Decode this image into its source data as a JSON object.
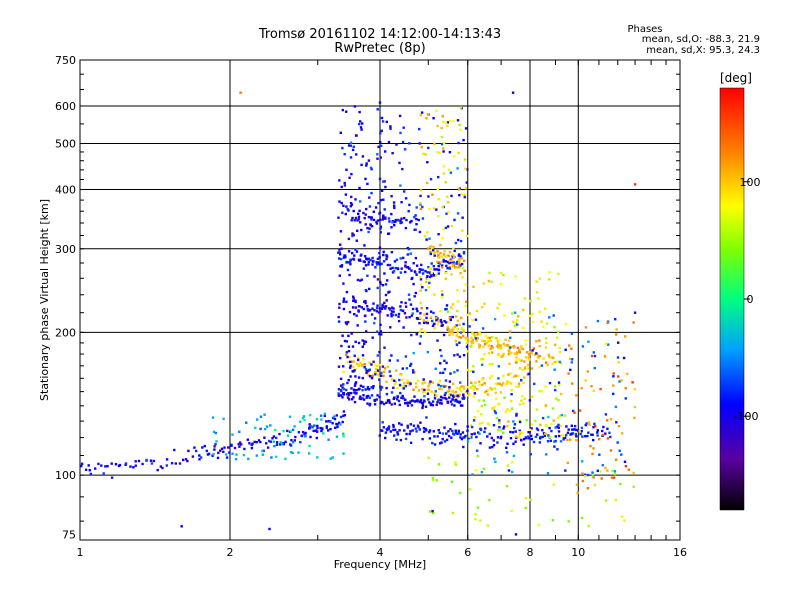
{
  "chart_data": {
    "type": "scatter",
    "title": "Tromsø 20161102 14:12:00-14:13:43",
    "subtitle": "RwPretec (8p)",
    "stats": {
      "header": "Phases",
      "line_o": "mean, sd,O: -88.3, 21.9",
      "line_x": "mean, sd,X:  95.3, 24.3"
    },
    "xlabel": "Frequency [MHz]",
    "ylabel": "Stationary phase Virtual Height [km]",
    "xscale": "log",
    "yscale": "log",
    "xlim": [
      1,
      16
    ],
    "ylim": [
      73,
      750
    ],
    "xticks": [
      1,
      2,
      4,
      6,
      8,
      10,
      16
    ],
    "yticks": [
      75,
      100,
      200,
      300,
      400,
      500,
      600,
      750
    ],
    "grid": true,
    "colorbar": {
      "label": "[deg]",
      "range": [
        -180,
        180
      ],
      "ticks": [
        -100,
        0,
        100
      ]
    },
    "traces": [
      {
        "freq": [
          1.0,
          1.3,
          1.7,
          2.0,
          2.4,
          2.8,
          3.1,
          3.4
        ],
        "height": [
          103,
          105,
          110,
          114,
          117,
          121,
          126,
          133
        ],
        "phase": -95,
        "spread": 0.04
      },
      {
        "freq": [
          3.3,
          3.6,
          4.0,
          4.5,
          5.0,
          5.5,
          5.9
        ],
        "height": [
          150,
          146,
          143,
          142,
          143,
          144,
          145
        ],
        "phase": -100,
        "spread": 0.03
      },
      {
        "freq": [
          3.4,
          3.8,
          4.2,
          4.8,
          5.4,
          6.0,
          7.0,
          8.0
        ],
        "height": [
          175,
          168,
          160,
          155,
          152,
          150,
          155,
          160
        ],
        "phase": 100,
        "spread": 0.05
      },
      {
        "freq": [
          4.0,
          4.4,
          4.9,
          5.5,
          6.0,
          7.0,
          8.0,
          9.0,
          10.0,
          11.5
        ],
        "height": [
          125,
          124,
          123,
          122,
          121,
          120,
          121,
          122,
          123,
          122
        ],
        "phase": -90,
        "spread": 0.05
      },
      {
        "freq": [
          3.3,
          3.6,
          4.0,
          4.5,
          5.0,
          5.5,
          5.9
        ],
        "height": [
          290,
          285,
          280,
          275,
          265,
          280,
          290
        ],
        "phase": -90,
        "spread": 0.04
      },
      {
        "freq": [
          5.0,
          5.5,
          5.9
        ],
        "height": [
          300,
          285,
          275
        ],
        "phase": 110,
        "spread": 0.05
      },
      {
        "freq": [
          3.4,
          3.8,
          4.2,
          4.8
        ],
        "height": [
          360,
          350,
          345,
          340
        ],
        "phase": -95,
        "spread": 0.05
      },
      {
        "freq": [
          3.5,
          3.9,
          4.3,
          5.0,
          5.6
        ],
        "height": [
          230,
          225,
          220,
          215,
          210
        ],
        "phase": -100,
        "spread": 0.05
      },
      {
        "freq": [
          5.5,
          6.0,
          6.5,
          7.0,
          7.5,
          8.0,
          9.0
        ],
        "height": [
          200,
          195,
          190,
          185,
          180,
          178,
          175
        ],
        "phase": 105,
        "spread": 0.05
      }
    ],
    "clusters": [
      {
        "f_range": [
          3.3,
          4.2
        ],
        "h_range": [
          150,
          600
        ],
        "phase": -95,
        "count": 260
      },
      {
        "f_range": [
          4.2,
          6.0
        ],
        "h_range": [
          140,
          600
        ],
        "phase": -85,
        "count": 200
      },
      {
        "f_range": [
          4.8,
          6.0
        ],
        "h_range": [
          200,
          600
        ],
        "phase": 90,
        "count": 120
      },
      {
        "f_range": [
          6.0,
          9.5
        ],
        "h_range": [
          120,
          270
        ],
        "phase": 80,
        "count": 170
      },
      {
        "f_range": [
          6.0,
          12.5
        ],
        "h_range": [
          100,
          220
        ],
        "phase": -70,
        "count": 110
      },
      {
        "f_range": [
          9.5,
          13.0
        ],
        "h_range": [
          90,
          210
        ],
        "phase": 120,
        "count": 70
      },
      {
        "f_range": [
          5.0,
          12.5
        ],
        "h_range": [
          78,
          110
        ],
        "phase": 60,
        "count": 45
      },
      {
        "f_range": [
          1.8,
          3.4
        ],
        "h_range": [
          108,
          135
        ],
        "phase": -30,
        "count": 70
      }
    ],
    "outliers": [
      {
        "f": 2.1,
        "h": 640,
        "phase": 130
      },
      {
        "f": 7.4,
        "h": 640,
        "phase": -100
      },
      {
        "f": 4.0,
        "h": 610,
        "phase": -110
      },
      {
        "f": 13.0,
        "h": 410,
        "phase": 160
      },
      {
        "f": 13.0,
        "h": 220,
        "phase": -110
      },
      {
        "f": 1.6,
        "h": 78,
        "phase": -100
      },
      {
        "f": 2.4,
        "h": 77,
        "phase": -95
      },
      {
        "f": 5.1,
        "h": 84,
        "phase": -120
      },
      {
        "f": 7.5,
        "h": 75,
        "phase": -100
      }
    ]
  }
}
